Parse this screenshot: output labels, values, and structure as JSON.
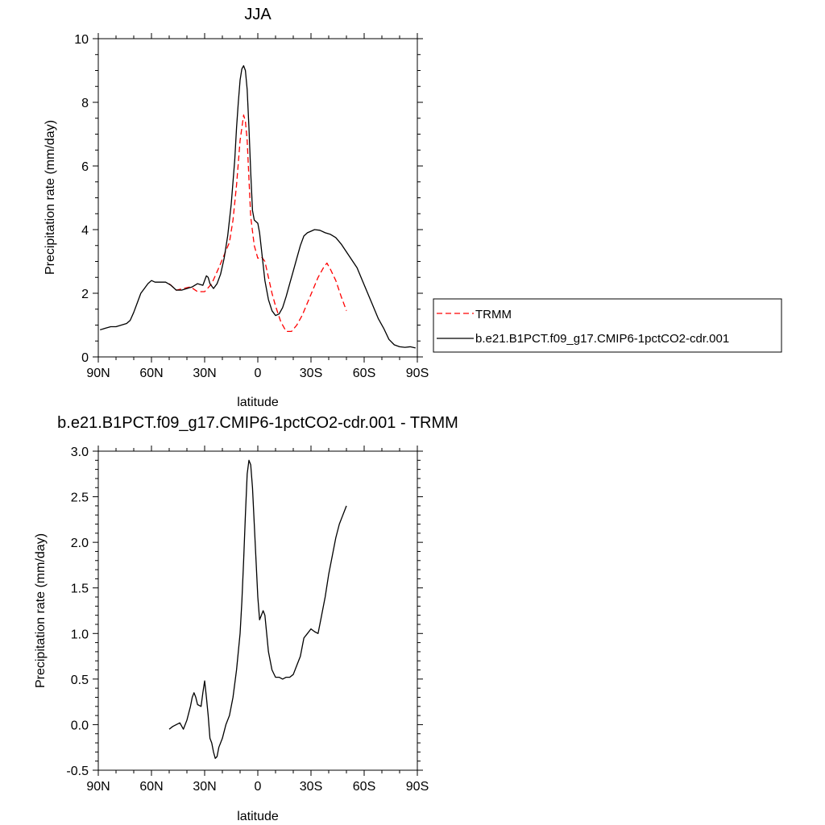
{
  "chart_data": [
    {
      "type": "line",
      "title": "JJA",
      "xlabel": "latitude",
      "ylabel": "Precipitation rate (mm/day)",
      "xlim": [
        90,
        -90
      ],
      "ylim": [
        0,
        10
      ],
      "x_ticks": [
        {
          "value": 90,
          "label": "90N"
        },
        {
          "value": 60,
          "label": "60N"
        },
        {
          "value": 30,
          "label": "30N"
        },
        {
          "value": 0,
          "label": "0"
        },
        {
          "value": -30,
          "label": "30S"
        },
        {
          "value": -60,
          "label": "60S"
        },
        {
          "value": -90,
          "label": "90S"
        }
      ],
      "y_ticks": [
        {
          "value": 0,
          "label": "0"
        },
        {
          "value": 2,
          "label": "2"
        },
        {
          "value": 4,
          "label": "4"
        },
        {
          "value": 6,
          "label": "6"
        },
        {
          "value": 8,
          "label": "8"
        },
        {
          "value": 10,
          "label": "10"
        }
      ],
      "legend_position": "right",
      "series": [
        {
          "name": "TRMM",
          "color": "#ff0000",
          "style": "dashed",
          "x": [
            50,
            46,
            42,
            38,
            34,
            30,
            26,
            22,
            19,
            16,
            14,
            12,
            10,
            8,
            7,
            6,
            5,
            4,
            2,
            0,
            -2,
            -4,
            -6,
            -8,
            -10,
            -13,
            -16,
            -19,
            -22,
            -25,
            -28,
            -31,
            -34,
            -37,
            -39,
            -41,
            -44,
            -47,
            -50
          ],
          "y": [
            2.3,
            2.1,
            2.15,
            2.2,
            2.05,
            2.05,
            2.3,
            2.8,
            3.2,
            3.6,
            4.3,
            5.4,
            6.8,
            7.6,
            7.4,
            6.8,
            5.6,
            4.4,
            3.5,
            3.1,
            3.15,
            3.0,
            2.5,
            2.0,
            1.6,
            1.1,
            0.8,
            0.8,
            1.0,
            1.3,
            1.7,
            2.1,
            2.5,
            2.8,
            2.95,
            2.75,
            2.4,
            1.9,
            1.45
          ]
        },
        {
          "name": "b.e21.B1PCT.f09_g17.CMIP6-1pctCO2-cdr.001",
          "color": "#000000",
          "style": "solid",
          "x": [
            89,
            86,
            83,
            80,
            77,
            74,
            72,
            70,
            68,
            66,
            64,
            62,
            60,
            58,
            55,
            52,
            49,
            46,
            43,
            40,
            37,
            34,
            31,
            29,
            28,
            27,
            25,
            23,
            21,
            19,
            17,
            15,
            13,
            12,
            11,
            10,
            9,
            8,
            7,
            6,
            5,
            4,
            3,
            2,
            1,
            0,
            -1,
            -2,
            -3,
            -4,
            -6,
            -8,
            -10,
            -12,
            -14,
            -16,
            -18,
            -20,
            -22,
            -24,
            -26,
            -28,
            -30,
            -32,
            -35,
            -38,
            -41,
            -44,
            -47,
            -50,
            -53,
            -56,
            -59,
            -62,
            -65,
            -68,
            -71,
            -74,
            -77,
            -80,
            -83,
            -86,
            -89
          ],
          "y": [
            0.85,
            0.9,
            0.95,
            0.95,
            1.0,
            1.05,
            1.15,
            1.4,
            1.7,
            2.0,
            2.15,
            2.3,
            2.4,
            2.35,
            2.35,
            2.35,
            2.25,
            2.1,
            2.1,
            2.15,
            2.2,
            2.3,
            2.25,
            2.55,
            2.5,
            2.3,
            2.15,
            2.3,
            2.6,
            3.1,
            3.8,
            4.8,
            6.2,
            7.2,
            8.0,
            8.7,
            9.05,
            9.15,
            9.0,
            8.4,
            7.2,
            5.8,
            4.6,
            4.3,
            4.25,
            4.2,
            3.9,
            3.4,
            2.9,
            2.4,
            1.8,
            1.45,
            1.3,
            1.35,
            1.55,
            1.9,
            2.3,
            2.7,
            3.1,
            3.5,
            3.8,
            3.9,
            3.95,
            4.0,
            3.98,
            3.9,
            3.85,
            3.75,
            3.55,
            3.3,
            3.05,
            2.8,
            2.4,
            2.0,
            1.6,
            1.2,
            0.9,
            0.55,
            0.38,
            0.32,
            0.3,
            0.32,
            0.28
          ]
        }
      ]
    },
    {
      "type": "line",
      "title": "b.e21.B1PCT.f09_g17.CMIP6-1pctCO2-cdr.001 - TRMM",
      "xlabel": "latitude",
      "ylabel": "Precipitation rate (mm/day)",
      "xlim": [
        90,
        -90
      ],
      "ylim": [
        -0.5,
        3.0
      ],
      "x_ticks": [
        {
          "value": 90,
          "label": "90N"
        },
        {
          "value": 60,
          "label": "60N"
        },
        {
          "value": 30,
          "label": "30N"
        },
        {
          "value": 0,
          "label": "0"
        },
        {
          "value": -30,
          "label": "30S"
        },
        {
          "value": -60,
          "label": "60S"
        },
        {
          "value": -90,
          "label": "90S"
        }
      ],
      "y_ticks": [
        {
          "value": -0.5,
          "label": "-0.5"
        },
        {
          "value": 0.0,
          "label": "0.0"
        },
        {
          "value": 0.5,
          "label": "0.5"
        },
        {
          "value": 1.0,
          "label": "1.0"
        },
        {
          "value": 1.5,
          "label": "1.5"
        },
        {
          "value": 2.0,
          "label": "2.0"
        },
        {
          "value": 2.5,
          "label": "2.5"
        },
        {
          "value": 3.0,
          "label": "3.0"
        }
      ],
      "series": [
        {
          "color": "#000000",
          "style": "solid",
          "x": [
            50,
            48,
            46,
            44,
            42,
            40,
            38,
            37,
            36,
            35,
            34,
            32,
            31,
            30,
            29,
            28,
            27,
            26,
            25,
            24,
            23,
            22,
            20,
            18,
            16,
            14,
            12,
            10,
            9,
            8,
            7,
            6,
            5,
            4,
            3,
            2,
            1,
            0,
            -1,
            -2,
            -3,
            -4,
            -5,
            -6,
            -7,
            -8,
            -10,
            -12,
            -14,
            -16,
            -18,
            -20,
            -22,
            -24,
            -26,
            -28,
            -30,
            -32,
            -34,
            -36,
            -38,
            -40,
            -42,
            -44,
            -46,
            -48,
            -50
          ],
          "y": [
            -0.05,
            -0.02,
            0.0,
            0.02,
            -0.05,
            0.05,
            0.2,
            0.3,
            0.35,
            0.3,
            0.22,
            0.2,
            0.35,
            0.48,
            0.3,
            0.1,
            -0.15,
            -0.2,
            -0.3,
            -0.37,
            -0.35,
            -0.25,
            -0.15,
            0.0,
            0.1,
            0.3,
            0.6,
            1.0,
            1.35,
            1.8,
            2.3,
            2.75,
            2.9,
            2.85,
            2.6,
            2.2,
            1.8,
            1.4,
            1.15,
            1.2,
            1.25,
            1.2,
            1.0,
            0.8,
            0.7,
            0.6,
            0.52,
            0.52,
            0.5,
            0.52,
            0.52,
            0.55,
            0.65,
            0.75,
            0.95,
            1.0,
            1.05,
            1.02,
            1.0,
            1.2,
            1.4,
            1.65,
            1.85,
            2.05,
            2.2,
            2.3,
            2.4
          ]
        }
      ]
    }
  ]
}
